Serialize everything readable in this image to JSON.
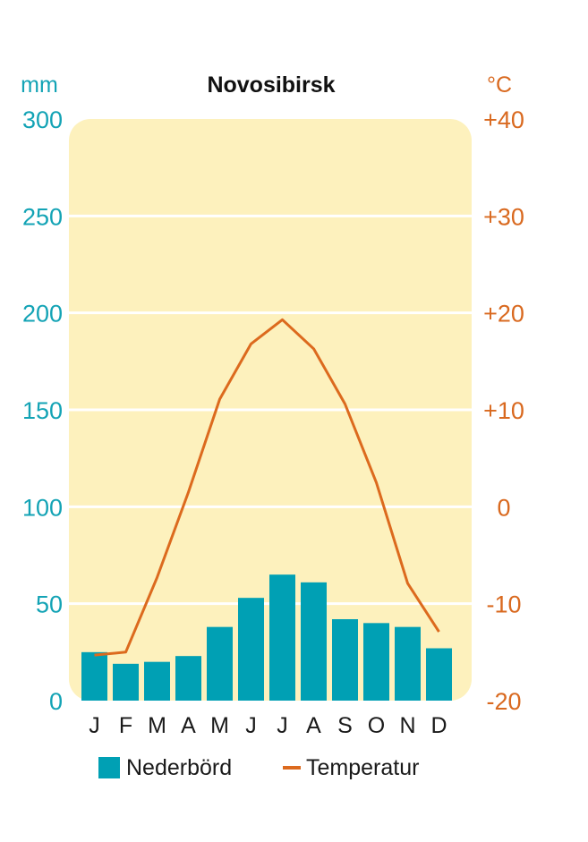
{
  "chart_data": {
    "type": "bar",
    "title": "Novosibirsk",
    "categories": [
      "J",
      "F",
      "M",
      "A",
      "M",
      "J",
      "J",
      "A",
      "S",
      "O",
      "N",
      "D"
    ],
    "y_left": {
      "unit": "mm",
      "ticks": [
        "0",
        "50",
        "100",
        "150",
        "200",
        "250",
        "300"
      ],
      "range": [
        0,
        300
      ]
    },
    "y_right": {
      "unit": "°C",
      "ticks": [
        "-20",
        "-10",
        "0",
        "+10",
        "+20",
        "+30",
        "+40"
      ],
      "range": [
        -20,
        40
      ]
    },
    "series": [
      {
        "name": "Nederbörd",
        "type": "bar",
        "axis": "left",
        "color": "#00a0b4",
        "values": [
          25,
          19,
          20,
          23,
          38,
          53,
          65,
          61,
          42,
          40,
          38,
          27
        ]
      },
      {
        "name": "Temperatur",
        "type": "line",
        "axis": "right",
        "color": "#dc6a1e",
        "values": [
          -15.3,
          -15.0,
          -7.3,
          1.5,
          11.1,
          16.8,
          19.3,
          16.3,
          10.6,
          2.5,
          -7.9,
          -12.9
        ]
      }
    ],
    "grid": true,
    "plot_background": "#fdf1bd",
    "legend": "bottom"
  }
}
